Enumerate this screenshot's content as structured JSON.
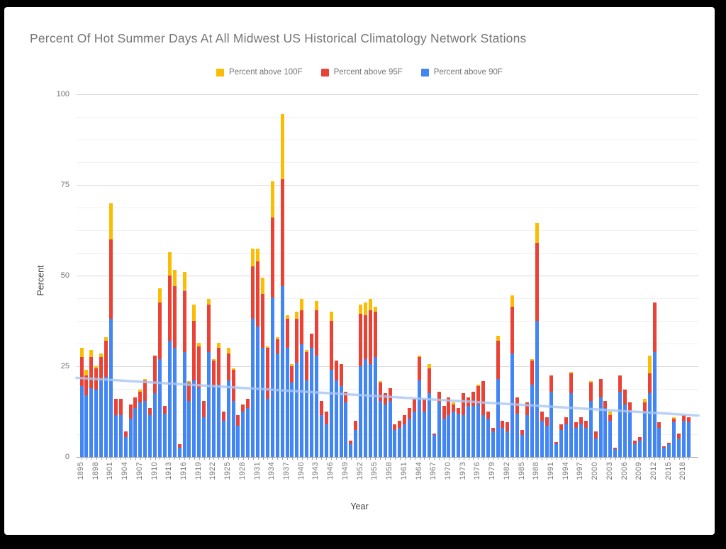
{
  "title": "Percent Of Hot Summer Days At All Midwest US Historical Climatology Network Stations",
  "legend": {
    "items": [
      {
        "label": "Percent above 100F",
        "color": "#FBBC04"
      },
      {
        "label": "Percent above 95F",
        "color": "#EA4335"
      },
      {
        "label": "Percent above 90F",
        "color": "#4285F4"
      }
    ]
  },
  "y_axis": {
    "title": "Percent",
    "ticks": [
      0,
      25,
      50,
      75,
      100
    ],
    "max": 100
  },
  "x_axis": {
    "title": "Year",
    "labels": [
      "1895",
      "1898",
      "1901",
      "1904",
      "1907",
      "1910",
      "1913",
      "1916",
      "1919",
      "1922",
      "1925",
      "1928",
      "1931",
      "1934",
      "1937",
      "1940",
      "1943",
      "1946",
      "1949",
      "1952",
      "1955",
      "1958",
      "1961",
      "1964",
      "1967",
      "1970",
      "1973",
      "1976",
      "1979",
      "1982",
      "1985",
      "1988",
      "1991",
      "1994",
      "1997",
      "2000",
      "2003",
      "2006",
      "2009",
      "2012",
      "2015",
      "2018"
    ]
  },
  "colors": {
    "above_100": "#FBBC04",
    "above_95": "#EA4335",
    "above_90": "#4285F4",
    "trendline": "#A9C7F4",
    "grid_major": "#d9d9d9",
    "grid_minor": "#f0f0f0",
    "axis_text": "#757575",
    "background": "#ffffff",
    "frame": "#000000"
  },
  "chart_data": {
    "type": "bar",
    "stacked": true,
    "title": "Percent Of Hot Summer Days At All Midwest US Historical Climatology Network Stations",
    "xlabel": "Year",
    "ylabel": "Percent",
    "ylim": [
      0,
      100
    ],
    "grid": {
      "major_step": 25,
      "minor_step": 6.25
    },
    "legend_position": "top-center",
    "year_start": 1895,
    "year_end": 2019,
    "series": [
      {
        "name": "Percent above 90F",
        "color": "#4285F4",
        "values": [
          19.5,
          17,
          19,
          18.5,
          21,
          22,
          38,
          11.5,
          11.5,
          5.5,
          10.5,
          13.5,
          15,
          15.5,
          11.5,
          17.5,
          27,
          12,
          32,
          30,
          2.5,
          29,
          15.5,
          21,
          19,
          11,
          29,
          19.5,
          20,
          10,
          21,
          15.5,
          8.5,
          12.5,
          13.5,
          38,
          36,
          30,
          16,
          44,
          28.5,
          47,
          30,
          20.5,
          26,
          31,
          21,
          30,
          28,
          11.5,
          9,
          24,
          21,
          19.5,
          15,
          3.5,
          7.5,
          25,
          27,
          25.5,
          27.5,
          15.5,
          14.5,
          15.5,
          7.5,
          8,
          9,
          10.5,
          12.5,
          21,
          12.5,
          17.5,
          6,
          15,
          10.5,
          11.5,
          12.5,
          12,
          11.5,
          14,
          14,
          14.5,
          11.5,
          10.5,
          7,
          21.5,
          8,
          7,
          28.5,
          12,
          6,
          11.5,
          20,
          37.5,
          10,
          8.5,
          18,
          3.5,
          7.5,
          9,
          17.5,
          8,
          9,
          8,
          15.5,
          5,
          16.5,
          13.5,
          10,
          2.2,
          18,
          14.5,
          12.5,
          3.5,
          4.5,
          12.5,
          17.5,
          29,
          8,
          2.5,
          3.5,
          9.5,
          5,
          10,
          9.5
        ]
      },
      {
        "name": "Percent above 95F",
        "color": "#EA4335",
        "values": [
          8,
          5.5,
          8.5,
          6,
          6.5,
          10,
          22,
          4.5,
          4.5,
          1.5,
          4,
          3,
          3,
          5.5,
          2,
          10.5,
          15.5,
          2,
          18,
          17,
          1,
          17,
          5,
          16.5,
          11.5,
          4.5,
          13,
          7,
          10,
          2.5,
          7.5,
          8.5,
          3,
          2,
          2.5,
          14.5,
          18,
          15,
          14,
          22,
          4,
          29.5,
          8,
          4.5,
          12,
          9.5,
          8,
          4,
          12.5,
          4,
          3.5,
          13.5,
          5.5,
          6,
          3,
          1,
          2.5,
          14.5,
          12,
          15,
          12.5,
          5,
          3,
          3.5,
          1.5,
          2,
          2.5,
          3,
          3.5,
          6.5,
          3.5,
          7,
          0.5,
          3,
          3.5,
          5,
          2,
          1.5,
          6,
          2.5,
          4,
          5,
          9.5,
          2,
          1,
          10.5,
          2,
          2.5,
          13,
          4.5,
          1.5,
          3.5,
          6.5,
          21.5,
          2.5,
          2.5,
          4.5,
          0.7,
          1.5,
          2,
          5.5,
          1.5,
          2,
          2,
          5,
          2,
          5,
          2,
          1.5,
          0.3,
          4.5,
          4,
          2.5,
          1,
          1,
          2.5,
          5.5,
          13.5,
          1.5,
          0.5,
          0.5,
          1,
          1.5,
          1.5,
          1.5
        ]
      },
      {
        "name": "Percent above 100F",
        "color": "#FBBC04",
        "values": [
          2.5,
          1.5,
          2,
          0.5,
          1,
          1,
          10,
          0,
          0,
          0,
          0,
          0,
          0.5,
          0.5,
          0,
          0,
          4,
          0,
          6.5,
          4.5,
          0,
          5,
          0.5,
          4.5,
          1,
          0,
          1.5,
          0.5,
          1.5,
          0,
          1.5,
          0.5,
          0,
          0,
          0,
          5,
          3.5,
          4.5,
          0.5,
          10,
          0.5,
          18,
          1,
          0.5,
          2,
          3,
          0.5,
          0,
          2.5,
          0,
          0,
          2.5,
          0,
          0,
          0,
          0,
          0,
          2.5,
          3.5,
          3,
          1.5,
          0.5,
          0,
          0,
          0,
          0,
          0,
          0,
          0,
          0.5,
          0,
          1,
          0,
          0,
          0,
          0,
          0.5,
          0,
          0,
          0,
          0,
          0.5,
          0,
          0,
          0,
          1.5,
          0,
          0,
          3,
          0,
          0,
          0,
          0.5,
          5.5,
          0,
          0,
          0,
          0,
          0,
          0,
          0.5,
          0,
          0,
          0,
          0.5,
          0,
          0,
          0,
          1,
          0,
          0,
          0,
          0,
          0,
          0,
          1,
          5,
          0,
          0,
          0,
          0,
          0.5,
          0,
          0
        ]
      }
    ],
    "trendline": {
      "start_percent": 21.8,
      "end_percent": 11.4,
      "color": "#A9C7F4"
    }
  }
}
